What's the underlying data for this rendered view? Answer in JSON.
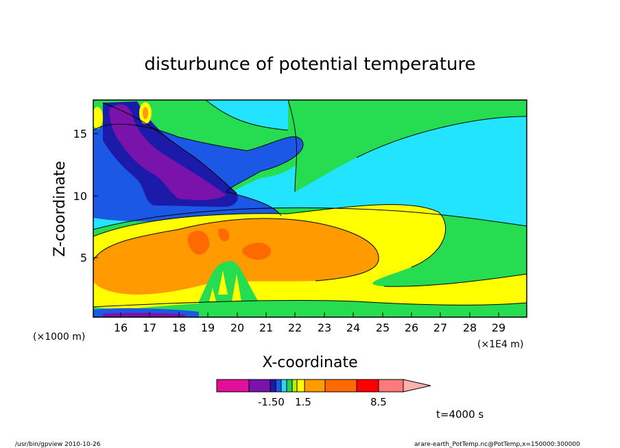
{
  "chart_data": {
    "type": "heatmap",
    "title": "disturbunce of potential temperature",
    "xlabel": "X-coordinate",
    "ylabel": "Z-coordinate",
    "x_ticks": [
      "16",
      "17",
      "18",
      "19",
      "20",
      "21",
      "22",
      "23",
      "24",
      "25",
      "26",
      "27",
      "28",
      "29"
    ],
    "x_unit_note_left": "(×1000 m)",
    "x_unit_note_right": "(×1E4 m)",
    "y_ticks": [
      "5",
      "10",
      "15"
    ],
    "xlim": [
      15.3,
      29.9
    ],
    "ylim": [
      0.2,
      17.5
    ],
    "colorbar": {
      "colors": [
        "#e0109a",
        "#7a12ac",
        "#1c1aa8",
        "#1c58e6",
        "#24d7ff",
        "#28d050",
        "#b8f000",
        "#ffff00",
        "#ff9a00",
        "#ff6a00",
        "#ff0000",
        "#ff7a7a",
        "#ffb0b0"
      ],
      "labels": [
        "-1.50",
        "1.5",
        "8.5"
      ]
    },
    "regions": [
      {
        "level": "light-blue",
        "color": "#22e4ff",
        "desc": "upper background"
      },
      {
        "level": "green",
        "color": "#26dc50"
      },
      {
        "level": "blue",
        "color": "#1c58e6"
      },
      {
        "level": "dark-blue",
        "color": "#1c1aa8"
      },
      {
        "level": "purple",
        "color": "#7a12ac"
      },
      {
        "level": "yellow",
        "color": "#ffff00"
      },
      {
        "level": "orange",
        "color": "#ff9a00"
      },
      {
        "level": "dark-orange",
        "color": "#ff6a00"
      }
    ]
  },
  "footer": {
    "time": "t=4000 s",
    "left": "/usr/bin/gpview   2010-10-26",
    "right": "arare-earth_PotTemp.nc@PotTemp,x=150000:300000"
  }
}
